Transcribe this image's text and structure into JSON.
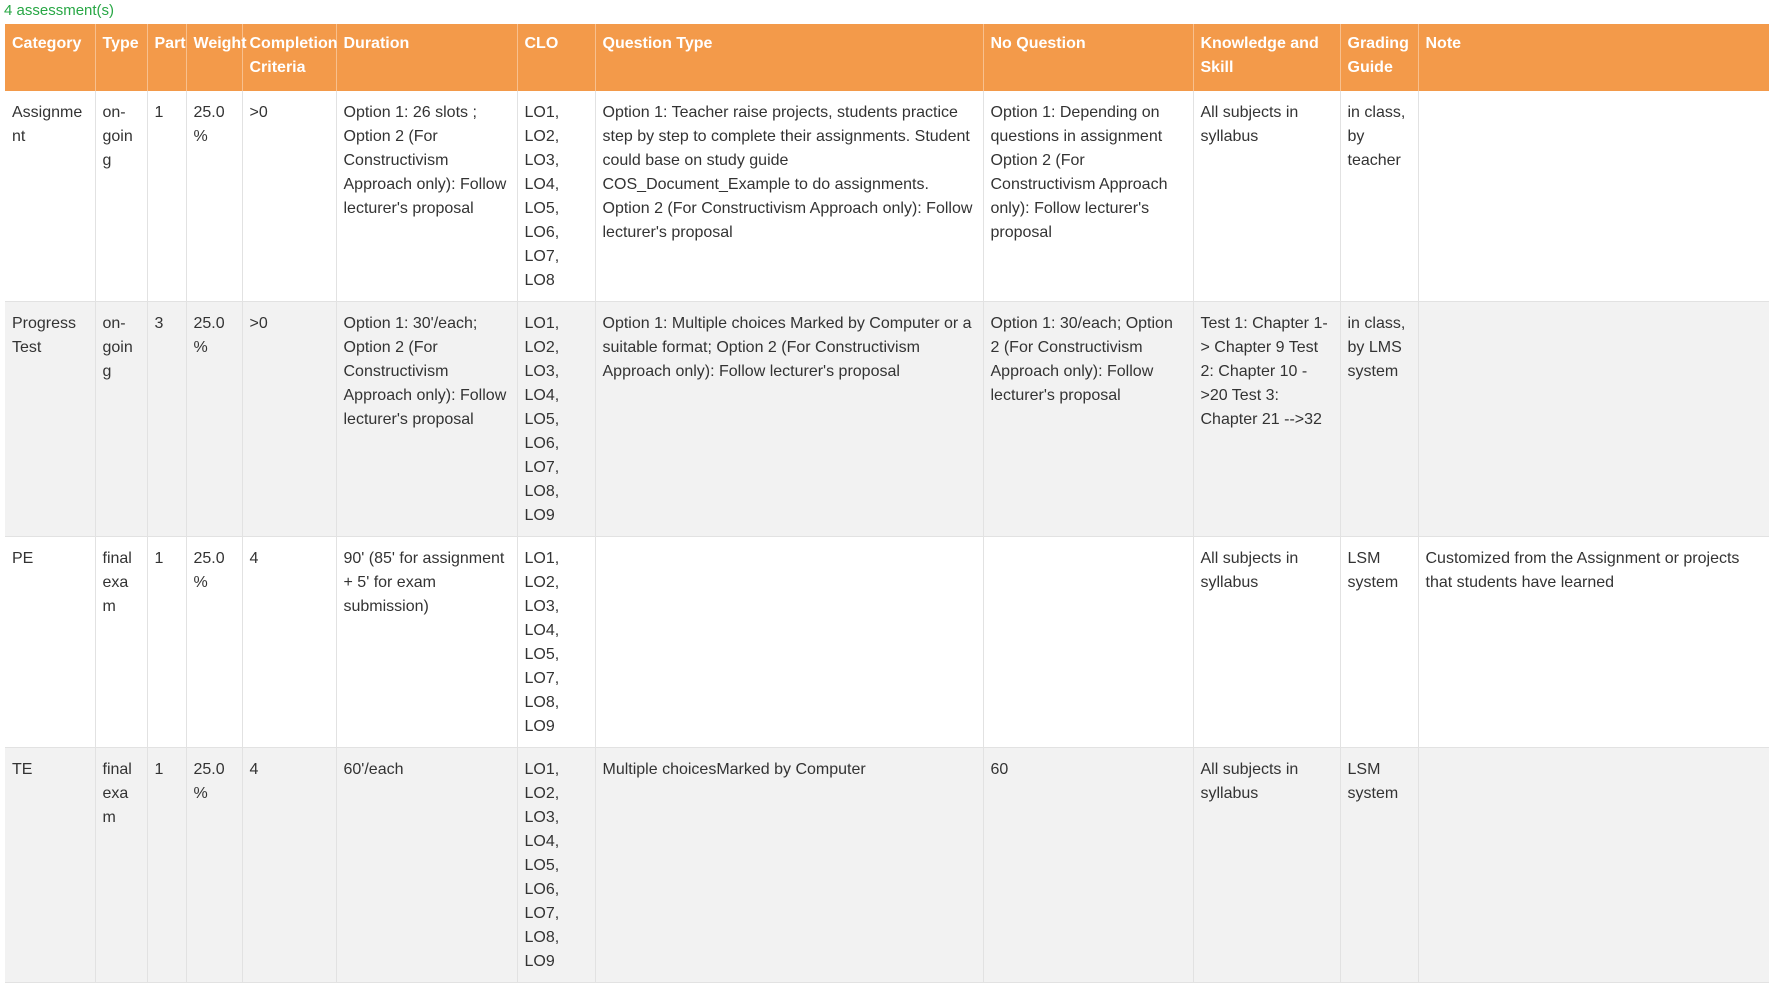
{
  "summary": {
    "count_label": "4 assessment(s)"
  },
  "colors": {
    "header_bg": "#f39a4a",
    "header_text": "#ffffff",
    "count_text": "#28a745",
    "row_alt_bg": "#f2f2f2"
  },
  "table": {
    "headers": [
      "Category",
      "Type",
      "Part",
      "Weight",
      "Completion Criteria",
      "Duration",
      "CLO",
      "Question Type",
      "No Question",
      "Knowledge and Skill",
      "Grading Guide",
      "Note"
    ],
    "rows": [
      {
        "category": "Assignment",
        "type": "on-going",
        "part": "1",
        "weight": "25.0%",
        "completion": ">0",
        "duration": "Option 1: 26 slots ; Option 2 (For Constructivism Approach only): Follow lecturer's proposal",
        "clo": "LO1, LO2, LO3, LO4, LO5, LO6, LO7, LO8",
        "question_type": "Option 1: Teacher raise projects, students practice step by step to complete their assignments. Student could base on study guide COS_Document_Example to do assignments. Option 2 (For Constructivism Approach only): Follow lecturer's proposal",
        "no_question": "Option 1: Depending on questions in assignment Option 2 (For Constructivism Approach only): Follow lecturer's proposal",
        "knowledge": "All subjects in syllabus",
        "grading": "in class, by teacher",
        "note": ""
      },
      {
        "category": "Progress Test",
        "type": "on-going",
        "part": "3",
        "weight": "25.0%",
        "completion": ">0",
        "duration": "Option 1: 30'/each; Option 2 (For Constructivism Approach only): Follow lecturer's proposal",
        "clo": "LO1, LO2, LO3, LO4, LO5, LO6, LO7, LO8, LO9",
        "question_type": "Option 1: Multiple choices Marked by Computer or a suitable format; Option 2 (For Constructivism Approach only): Follow lecturer's proposal",
        "no_question": "Option 1: 30/each; Option 2 (For Constructivism Approach only): Follow lecturer's proposal",
        "knowledge": "Test 1: Chapter 1-> Chapter 9 Test 2: Chapter 10 ->20 Test 3: Chapter 21 -->32",
        "grading": "in class, by LMS system",
        "note": ""
      },
      {
        "category": "PE",
        "type": "final exam",
        "part": "1",
        "weight": "25.0%",
        "completion": "4",
        "duration": "90' (85' for assignment + 5' for exam submission)",
        "clo": "LO1, LO2, LO3, LO4, LO5, LO7, LO8, LO9",
        "question_type": "",
        "no_question": "",
        "knowledge": "All subjects in syllabus",
        "grading": "LSM system",
        "note": "Customized from the Assignment or projects that students have learned"
      },
      {
        "category": "TE",
        "type": "final exam",
        "part": "1",
        "weight": "25.0%",
        "completion": "4",
        "duration": "60'/each",
        "clo": "LO1, LO2, LO3, LO4, LO5, LO6, LO7, LO8, LO9",
        "question_type": "Multiple choicesMarked by Computer",
        "no_question": "60",
        "knowledge": "All subjects in syllabus",
        "grading": "LSM system",
        "note": ""
      }
    ]
  }
}
